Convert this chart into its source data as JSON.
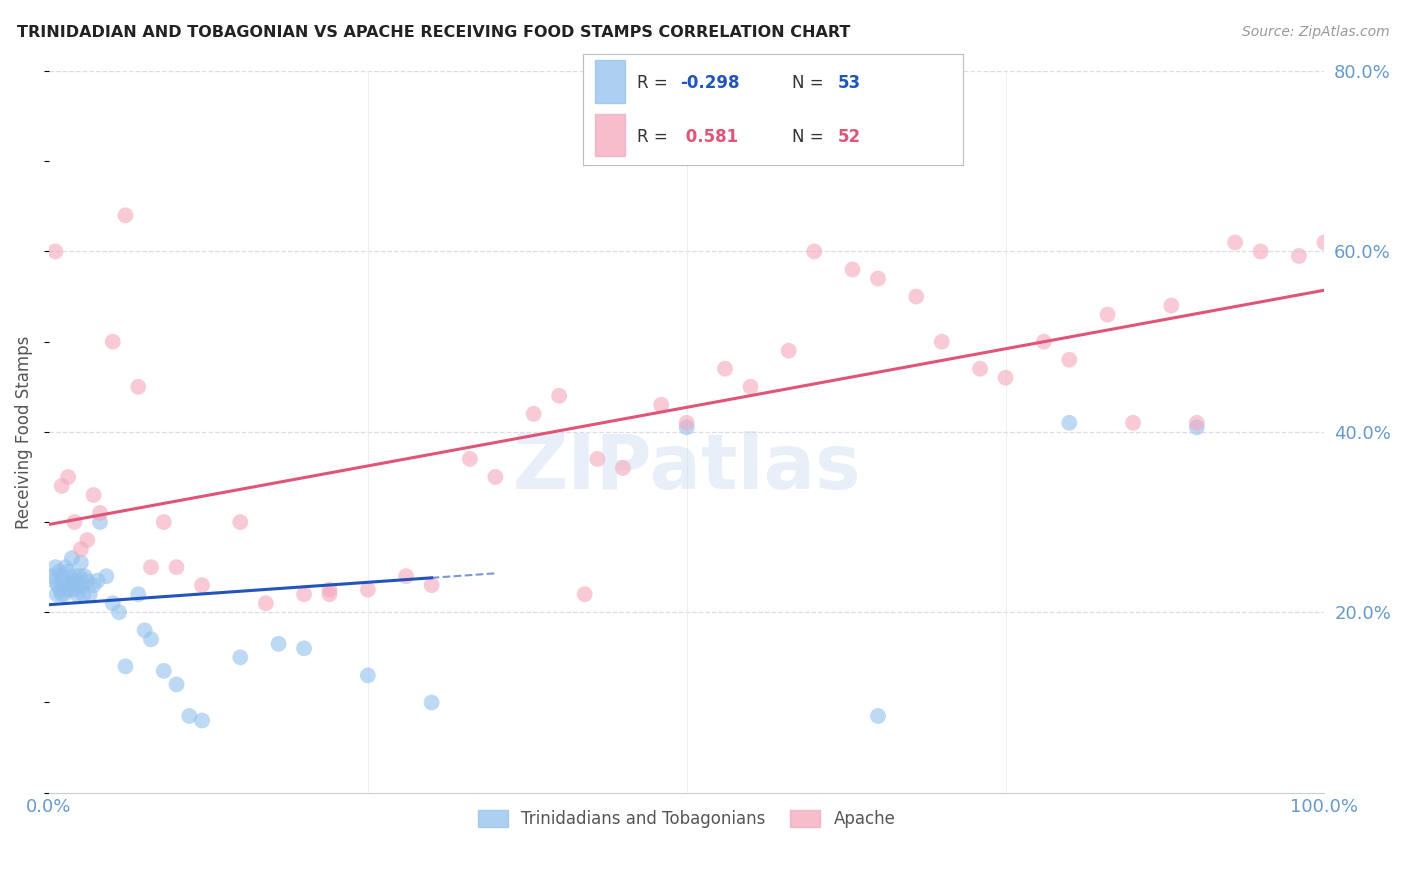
{
  "title": "TRINIDADIAN AND TOBAGONIAN VS APACHE RECEIVING FOOD STAMPS CORRELATION CHART",
  "source": "Source: ZipAtlas.com",
  "ylabel": "Receiving Food Stamps",
  "watermark": "ZIPatlas",
  "legend_label1": "Trinidadians and Tobagonians",
  "legend_label2": "Apache",
  "blue_color": "#92C0ED",
  "pink_color": "#F4A8BC",
  "blue_line_color": "#2255BB",
  "pink_line_color": "#E05575",
  "grid_color": "#DCDCE8",
  "title_color": "#222222",
  "axis_label_color": "#6699CC",
  "background_color": "#FFFFFF",
  "blue_scatter_x": [
    0.3,
    0.4,
    0.5,
    0.6,
    0.7,
    0.8,
    0.9,
    1.0,
    1.0,
    1.1,
    1.2,
    1.3,
    1.4,
    1.5,
    1.6,
    1.7,
    1.8,
    1.9,
    2.0,
    2.0,
    2.1,
    2.2,
    2.3,
    2.4,
    2.5,
    2.6,
    2.7,
    2.8,
    3.0,
    3.2,
    3.5,
    4.0,
    4.5,
    5.0,
    6.0,
    7.0,
    8.0,
    10.0,
    12.0,
    15.0,
    18.0,
    20.0,
    25.0,
    30.0,
    50.0,
    65.0,
    80.0,
    90.0,
    3.8,
    5.5,
    7.5,
    9.0,
    11.0
  ],
  "blue_scatter_y": [
    24.0,
    23.5,
    25.0,
    22.0,
    23.0,
    24.5,
    22.5,
    24.0,
    22.0,
    23.5,
    22.0,
    25.0,
    23.0,
    24.5,
    22.5,
    23.0,
    26.0,
    23.5,
    24.0,
    22.5,
    23.5,
    22.0,
    23.0,
    24.0,
    25.5,
    23.0,
    22.0,
    24.0,
    23.5,
    22.0,
    23.0,
    30.0,
    24.0,
    21.0,
    14.0,
    22.0,
    17.0,
    12.0,
    8.0,
    15.0,
    16.5,
    16.0,
    13.0,
    10.0,
    40.5,
    8.5,
    41.0,
    40.5,
    23.5,
    20.0,
    18.0,
    13.5,
    8.5
  ],
  "pink_scatter_x": [
    0.5,
    1.0,
    2.0,
    3.0,
    4.0,
    5.0,
    6.0,
    7.0,
    8.0,
    9.0,
    10.0,
    12.0,
    15.0,
    20.0,
    22.0,
    25.0,
    28.0,
    30.0,
    33.0,
    35.0,
    38.0,
    40.0,
    43.0,
    45.0,
    48.0,
    50.0,
    53.0,
    55.0,
    58.0,
    60.0,
    63.0,
    65.0,
    68.0,
    70.0,
    73.0,
    75.0,
    78.0,
    80.0,
    83.0,
    85.0,
    88.0,
    90.0,
    93.0,
    95.0,
    98.0,
    100.0,
    1.5,
    2.5,
    3.5,
    17.0,
    22.0,
    42.0
  ],
  "pink_scatter_y": [
    60.0,
    34.0,
    30.0,
    28.0,
    31.0,
    50.0,
    64.0,
    45.0,
    25.0,
    30.0,
    25.0,
    23.0,
    30.0,
    22.0,
    22.5,
    22.5,
    24.0,
    23.0,
    37.0,
    35.0,
    42.0,
    44.0,
    37.0,
    36.0,
    43.0,
    41.0,
    47.0,
    45.0,
    49.0,
    60.0,
    58.0,
    57.0,
    55.0,
    50.0,
    47.0,
    46.0,
    50.0,
    48.0,
    53.0,
    41.0,
    54.0,
    41.0,
    61.0,
    60.0,
    59.5,
    61.0,
    35.0,
    27.0,
    33.0,
    21.0,
    22.0,
    22.0
  ],
  "xlim": [
    0,
    100
  ],
  "ylim": [
    0,
    80
  ],
  "right_yticks": [
    20.0,
    40.0,
    60.0,
    80.0
  ],
  "right_yticklabels": [
    "20.0%",
    "40.0%",
    "60.0%",
    "80.0%"
  ],
  "xticks": [
    0,
    25,
    50,
    75,
    100
  ],
  "xticklabels": [
    "0.0%",
    "",
    "",
    "",
    "100.0%"
  ],
  "legend_r1_val": "-0.298",
  "legend_n1": "53",
  "legend_r2_val": "0.581",
  "legend_n2": "52"
}
